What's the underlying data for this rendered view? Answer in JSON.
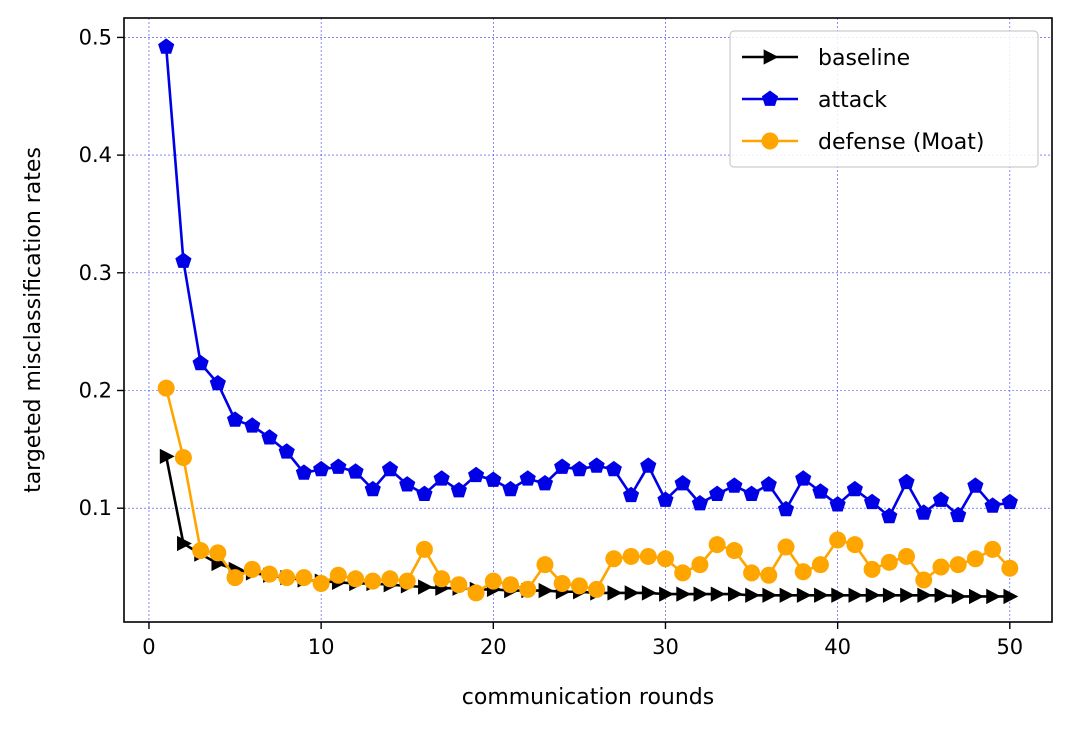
{
  "chart_data": {
    "type": "line",
    "xlabel": "communication rounds",
    "ylabel": "targeted misclassification rates",
    "xlim": [
      -1.45,
      52.45
    ],
    "ylim": [
      0.0033,
      0.5165
    ],
    "xticks": [
      0,
      10,
      20,
      30,
      40,
      50
    ],
    "xtick_labels": [
      "0",
      "10",
      "20",
      "30",
      "40",
      "50"
    ],
    "yticks": [
      0.1,
      0.2,
      0.3,
      0.4,
      0.5
    ],
    "ytick_labels": [
      "0.1",
      "0.2",
      "0.3",
      "0.4",
      "0.5"
    ],
    "grid": true,
    "grid_color": "#3b3bff",
    "legend_placement": "top-right",
    "x": [
      1,
      2,
      3,
      4,
      5,
      6,
      7,
      8,
      9,
      10,
      11,
      12,
      13,
      14,
      15,
      16,
      17,
      18,
      19,
      20,
      21,
      22,
      23,
      24,
      25,
      26,
      27,
      28,
      29,
      30,
      31,
      32,
      33,
      34,
      35,
      36,
      37,
      38,
      39,
      40,
      41,
      42,
      43,
      44,
      45,
      46,
      47,
      48,
      49,
      50
    ],
    "series": [
      {
        "name": "baseline",
        "color": "#000000",
        "marker": "triangle-right",
        "values": [
          0.144,
          0.07,
          0.061,
          0.053,
          0.048,
          0.045,
          0.043,
          0.041,
          0.039,
          0.038,
          0.037,
          0.036,
          0.036,
          0.035,
          0.034,
          0.033,
          0.032,
          0.032,
          0.031,
          0.031,
          0.03,
          0.03,
          0.03,
          0.029,
          0.029,
          0.028,
          0.028,
          0.028,
          0.028,
          0.027,
          0.027,
          0.027,
          0.027,
          0.027,
          0.026,
          0.026,
          0.026,
          0.026,
          0.026,
          0.026,
          0.026,
          0.026,
          0.026,
          0.026,
          0.026,
          0.026,
          0.025,
          0.025,
          0.025,
          0.025
        ]
      },
      {
        "name": "attack",
        "color": "#0000e6",
        "marker": "pentagon",
        "values": [
          0.492,
          0.31,
          0.223,
          0.206,
          0.175,
          0.17,
          0.16,
          0.148,
          0.13,
          0.133,
          0.135,
          0.131,
          0.116,
          0.133,
          0.12,
          0.112,
          0.125,
          0.115,
          0.128,
          0.124,
          0.116,
          0.125,
          0.121,
          0.135,
          0.133,
          0.136,
          0.133,
          0.111,
          0.136,
          0.107,
          0.121,
          0.104,
          0.112,
          0.119,
          0.112,
          0.12,
          0.099,
          0.125,
          0.114,
          0.103,
          0.116,
          0.105,
          0.093,
          0.122,
          0.096,
          0.107,
          0.094,
          0.119,
          0.102,
          0.105
        ]
      },
      {
        "name": "defense (Moat)",
        "color": "#ffa500",
        "marker": "circle",
        "values": [
          0.202,
          0.143,
          0.064,
          0.062,
          0.041,
          0.048,
          0.044,
          0.041,
          0.041,
          0.036,
          0.043,
          0.04,
          0.038,
          0.04,
          0.038,
          0.065,
          0.04,
          0.035,
          0.028,
          0.038,
          0.035,
          0.031,
          0.052,
          0.036,
          0.034,
          0.031,
          0.057,
          0.059,
          0.059,
          0.057,
          0.045,
          0.052,
          0.069,
          0.064,
          0.045,
          0.043,
          0.067,
          0.046,
          0.052,
          0.073,
          0.069,
          0.048,
          0.054,
          0.059,
          0.039,
          0.05,
          0.052,
          0.057,
          0.065,
          0.049
        ]
      }
    ]
  }
}
